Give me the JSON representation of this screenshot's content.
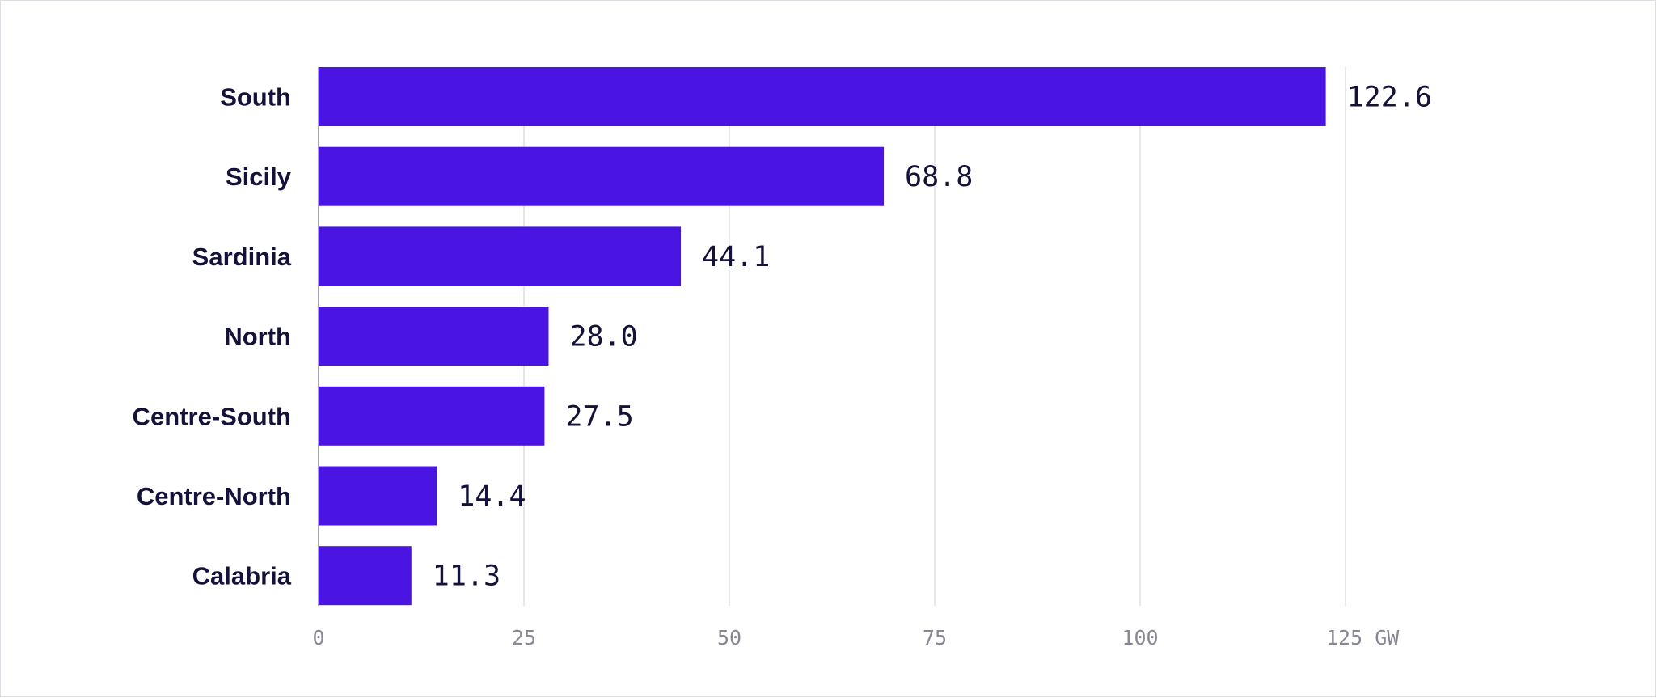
{
  "chart_data": {
    "type": "bar",
    "orientation": "horizontal",
    "categories": [
      "South",
      "Sicily",
      "Sardinia",
      "North",
      "Centre-South",
      "Centre-North",
      "Calabria"
    ],
    "values": [
      122.6,
      68.8,
      44.1,
      28.0,
      27.5,
      14.4,
      11.3
    ],
    "value_labels": [
      "122.6",
      "68.8",
      "44.1",
      "28.0",
      "27.5",
      "14.4",
      "11.3"
    ],
    "xlim": [
      0,
      125
    ],
    "xticks": [
      0,
      25,
      50,
      75,
      100,
      125
    ],
    "xtick_labels": [
      "0",
      "25",
      "50",
      "75",
      "100",
      "125 GW"
    ],
    "grid": true,
    "bar_color": "#4a14e3"
  }
}
